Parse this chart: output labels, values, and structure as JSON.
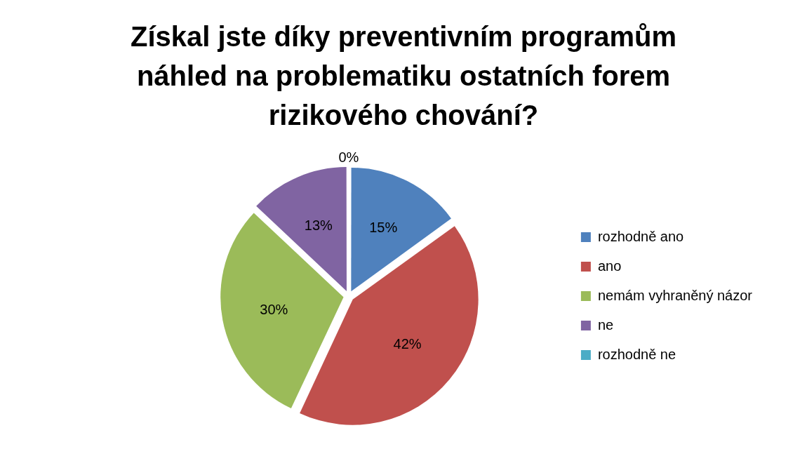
{
  "chart_data": {
    "type": "pie",
    "title": "Získal jste díky preventivním programům náhled na problematiku ostatních forem rizikového chování?",
    "categories": [
      "rozhodně ano",
      "ano",
      "nemám vyhraněný názor",
      "ne",
      "rozhodně ne"
    ],
    "values": [
      15,
      42,
      30,
      13,
      0
    ],
    "colors": [
      "#4f81bd",
      "#c0504d",
      "#9bbb59",
      "#8064a2",
      "#4bacc6"
    ],
    "value_labels": [
      "15%",
      "42%",
      "30%",
      "13%",
      "0%"
    ],
    "legend": "right"
  }
}
